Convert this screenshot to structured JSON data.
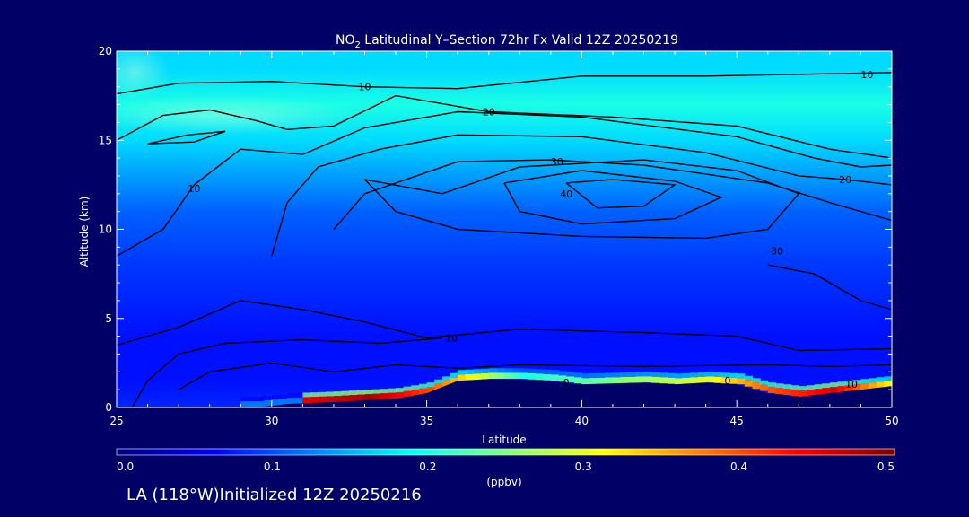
{
  "footer": "LA (118°W)Initialized 12Z 20250216",
  "chart_data": {
    "type": "heatmap",
    "title_prefix": "NO",
    "title_sub": "2",
    "title_rest": " Latitudinal Y–Section 72hr  Fx Valid 12Z 20250219",
    "xlabel": "Latitude",
    "ylabel": "Altitude (km)",
    "xlim": [
      25,
      50
    ],
    "ylim": [
      0,
      20
    ],
    "x_ticks": [
      "25",
      "30",
      "35",
      "40",
      "45",
      "50"
    ],
    "y_ticks": [
      "0",
      "5",
      "10",
      "15",
      "20"
    ],
    "colorbar": {
      "label": "(ppbv)",
      "range": [
        0.0,
        0.5
      ],
      "ticks": [
        "0.0",
        "0.1",
        "0.2",
        "0.3",
        "0.4",
        "0.5"
      ],
      "colors": [
        "#00007f",
        "#0000ff",
        "#0080ff",
        "#00ffff",
        "#80ff80",
        "#ffff00",
        "#ff8000",
        "#ff0000",
        "#7f0000"
      ]
    },
    "field": {
      "altitude_profile": [
        [
          0,
          0.08
        ],
        [
          1.5,
          0.07
        ],
        [
          4,
          0.07
        ],
        [
          8,
          0.09
        ],
        [
          11,
          0.11
        ],
        [
          13,
          0.14
        ],
        [
          15,
          0.17
        ],
        [
          17,
          0.2
        ],
        [
          19,
          0.17
        ],
        [
          20,
          0.17
        ]
      ],
      "surface_high_values": [
        [
          31,
          0.45
        ],
        [
          33,
          0.48
        ],
        [
          35,
          0.4
        ],
        [
          38,
          0.2
        ],
        [
          44,
          0.3
        ],
        [
          46,
          0.4
        ],
        [
          48,
          0.45
        ],
        [
          50,
          0.3
        ]
      ]
    },
    "terrain": [
      [
        25,
        0
      ],
      [
        29.5,
        0
      ],
      [
        30.5,
        0.2
      ],
      [
        32,
        0.3
      ],
      [
        34,
        0.5
      ],
      [
        35,
        0.8
      ],
      [
        36,
        1.5
      ],
      [
        37,
        1.6
      ],
      [
        38,
        1.6
      ],
      [
        39,
        1.5
      ],
      [
        40,
        1.3
      ],
      [
        42,
        1.4
      ],
      [
        43,
        1.3
      ],
      [
        44,
        1.4
      ],
      [
        45,
        1.3
      ],
      [
        46,
        0.8
      ],
      [
        47,
        0.6
      ],
      [
        48,
        0.8
      ],
      [
        49,
        1.0
      ],
      [
        50,
        1.2
      ]
    ],
    "contour_labels": [
      {
        "text": "10",
        "x": 33,
        "y": 18
      },
      {
        "text": "10",
        "x": 49.2,
        "y": 18.7
      },
      {
        "text": "20",
        "x": 37,
        "y": 16.6
      },
      {
        "text": "30",
        "x": 39.2,
        "y": 13.8
      },
      {
        "text": "40",
        "x": 39.5,
        "y": 12.0
      },
      {
        "text": "10",
        "x": 27.5,
        "y": 12.3
      },
      {
        "text": "20",
        "x": 48.5,
        "y": 12.8
      },
      {
        "text": "30",
        "x": 46.3,
        "y": 8.8
      },
      {
        "text": "10",
        "x": 35.8,
        "y": 3.9
      },
      {
        "text": "0",
        "x": 39.5,
        "y": 1.4
      },
      {
        "text": "0",
        "x": 44.7,
        "y": 1.5
      },
      {
        "text": "10",
        "x": 48.7,
        "y": 1.3
      }
    ]
  }
}
